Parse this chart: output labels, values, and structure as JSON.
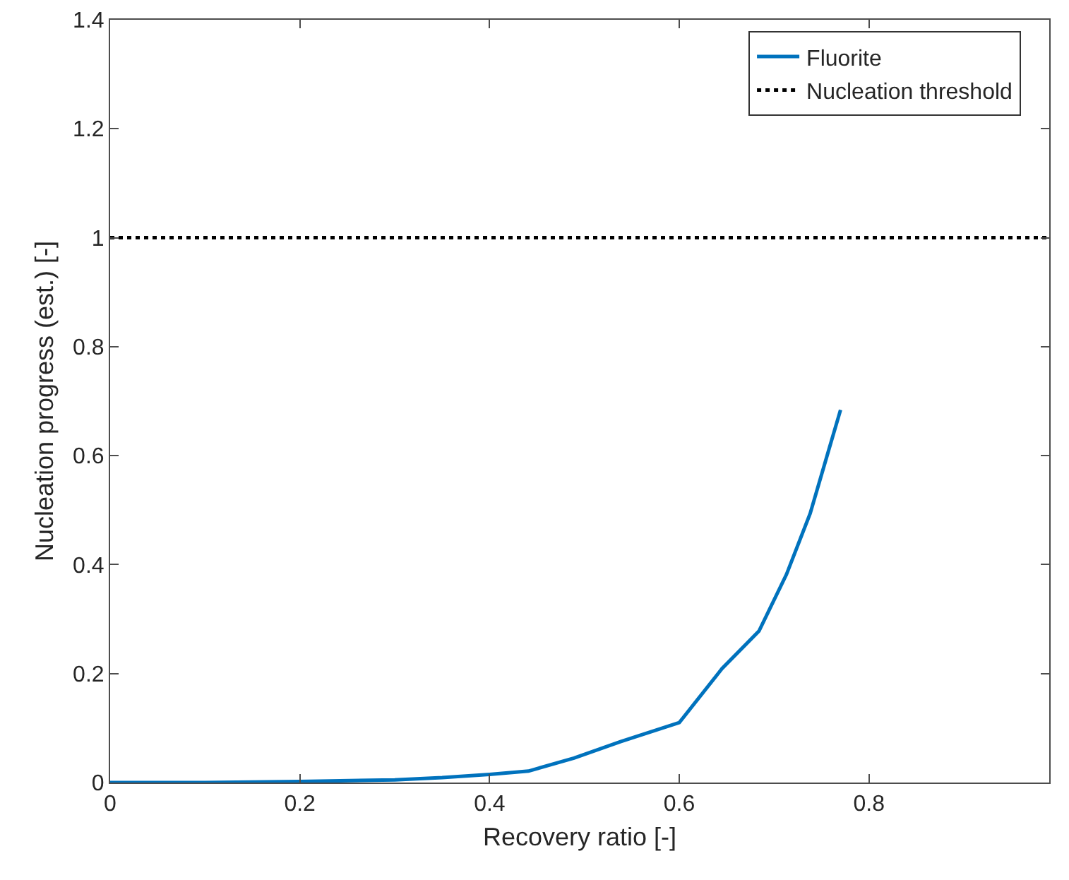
{
  "chart_data": {
    "type": "line",
    "xlabel": "Recovery ratio [-]",
    "ylabel": "Nucleation progress (est.) [-]",
    "xlim": [
      0,
      0.99
    ],
    "xticks": [
      0,
      0.2,
      0.4,
      0.6,
      0.8
    ],
    "ylim": [
      0,
      1.4
    ],
    "yticks": [
      0,
      0.2,
      0.4,
      0.6,
      0.8,
      1,
      1.2,
      1.4
    ],
    "grid": false,
    "legend": "top right",
    "line_style": "solid",
    "marker": "none",
    "series": [
      {
        "name": "Fluorite",
        "color": "#0072bd",
        "x": [
          0,
          0.1,
          0.2,
          0.3,
          0.35,
          0.4,
          0.441,
          0.489,
          0.538,
          0.6,
          0.645,
          0.684,
          0.713,
          0.738,
          0.757,
          0.77
        ],
        "values": [
          0,
          0,
          0.002,
          0.005,
          0.009,
          0.015,
          0.021,
          0.045,
          0.075,
          0.11,
          0.209,
          0.278,
          0.382,
          0.494,
          0.607,
          0.684
        ]
      }
    ],
    "ref_lines": [
      {
        "axis": "y",
        "value": 1,
        "label": "Nucleation threshold",
        "color": "#000000",
        "line_style": "dotted"
      }
    ]
  }
}
